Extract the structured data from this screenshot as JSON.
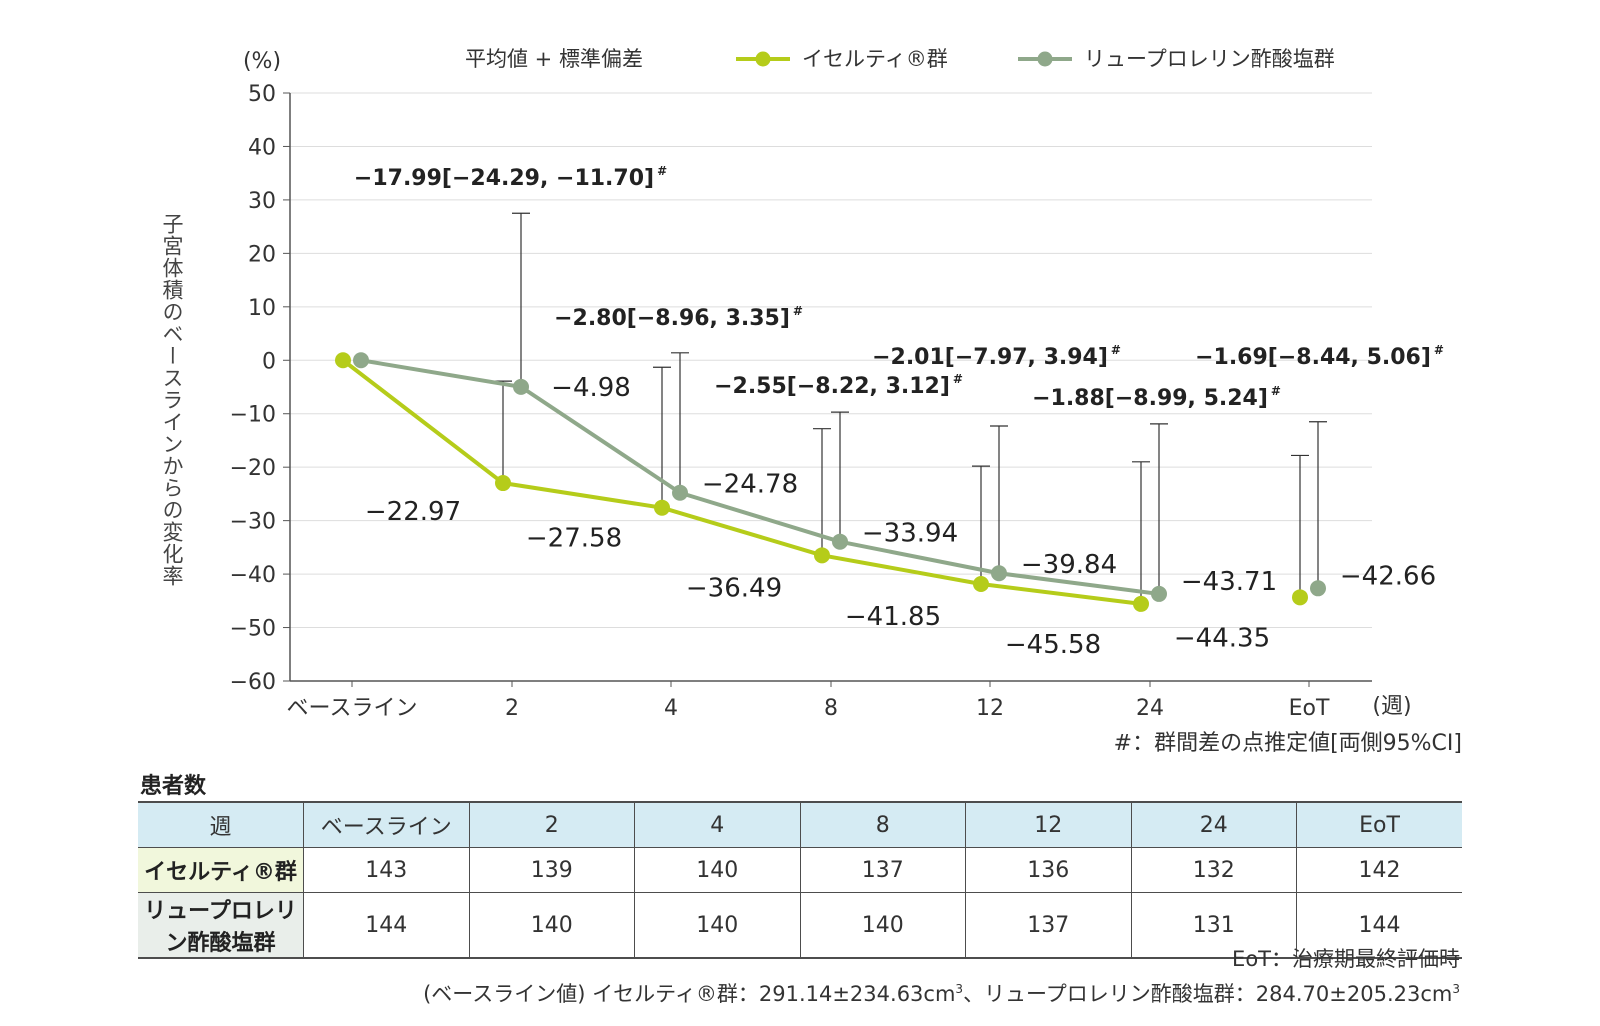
{
  "chart_data": {
    "type": "line",
    "title": "",
    "ylabel": "子宮体積のベースラインからの変化率",
    "yunit": "(%)",
    "xunit": "(週)",
    "ylim": [
      -60,
      50
    ],
    "yticks": [
      50,
      40,
      30,
      20,
      10,
      0,
      -10,
      -20,
      -30,
      -40,
      -50,
      -60
    ],
    "ytick_labels": [
      "50",
      "40",
      "30",
      "20",
      "10",
      "0",
      "−10",
      "−20",
      "−30",
      "−40",
      "−50",
      "−60"
    ],
    "categories": [
      "ベースライン",
      "2",
      "4",
      "8",
      "12",
      "24",
      "EoT"
    ],
    "grid": true,
    "legend": {
      "sd_label": "平均値 + 標準偏差",
      "items": [
        "イセルティ®群",
        "リュープロレリン酢酸塩群"
      ]
    },
    "series": [
      {
        "name": "イセルティ®群",
        "color": "#b5cc1a",
        "values": [
          0,
          -22.97,
          -27.58,
          -36.49,
          -41.85,
          -45.58,
          -44.35
        ],
        "sd_upper": [
          null,
          -3.9,
          -1.3,
          -12.8,
          -19.8,
          -19.0,
          -17.8
        ],
        "value_labels": [
          "",
          "−22.97",
          "−27.58",
          "−36.49",
          "−41.85",
          "−45.58",
          "−44.35"
        ]
      },
      {
        "name": "リュープロレリン酢酸塩群",
        "color": "#8fa88a",
        "values": [
          0,
          -4.98,
          -24.78,
          -33.94,
          -39.84,
          -43.71,
          -42.66
        ],
        "sd_upper": [
          null,
          27.5,
          1.4,
          -9.7,
          -12.3,
          -11.9,
          -11.5
        ],
        "value_labels": [
          "",
          "−4.98",
          "−24.78",
          "−33.94",
          "−39.84",
          "−43.71",
          "−42.66"
        ]
      }
    ],
    "comparisons": [
      {
        "week": "2",
        "text": "−17.99[−24.29, −11.70]",
        "mark": "#"
      },
      {
        "week": "4",
        "text": "−2.80[−8.96, 3.35]",
        "mark": "#"
      },
      {
        "week": "8",
        "text": "−2.55[−8.22, 3.12]",
        "mark": "#"
      },
      {
        "week": "12",
        "text": "−2.01[−7.97, 3.94]",
        "mark": "#"
      },
      {
        "week": "24",
        "text": "−1.88[−8.99, 5.24]",
        "mark": "#"
      },
      {
        "week": "EoT",
        "text": "−1.69[−8.44, 5.06]",
        "mark": "#"
      }
    ],
    "footnote": "#：群間差の点推定値[両側95%CI]"
  },
  "table": {
    "title": "患者数",
    "header": [
      "週",
      "ベースライン",
      "2",
      "4",
      "8",
      "12",
      "24",
      "EoT"
    ],
    "rows": [
      {
        "label": "イセルティ®群",
        "values": [
          "143",
          "139",
          "140",
          "137",
          "136",
          "132",
          "142"
        ]
      },
      {
        "label": "リュープロレリン酢酸塩群",
        "values": [
          "144",
          "140",
          "140",
          "140",
          "137",
          "131",
          "144"
        ]
      }
    ]
  },
  "notes": {
    "eot": "EoT：治療期最終評価時",
    "baseline_prefix": "(ベースライン値) イセルティ®群：291.14±234.63cm",
    "baseline_mid": "、リュープロレリン酢酸塩群：284.70±205.23cm",
    "superscript": "3"
  }
}
